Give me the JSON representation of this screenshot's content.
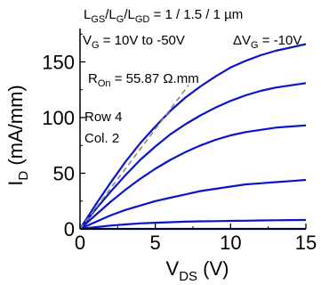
{
  "chart_data": {
    "type": "line",
    "title": "",
    "xlabel": "V",
    "xlabel_sub": "DS",
    "xlabel_unit": "(V)",
    "ylabel": "I",
    "ylabel_sub": "D",
    "ylabel_unit": "(mA/mm)",
    "xlim": [
      0,
      15
    ],
    "ylim": [
      0,
      180
    ],
    "xticks": [
      0,
      5,
      10,
      15
    ],
    "yticks": [
      0,
      50,
      100,
      150
    ],
    "grid": false,
    "colors": {
      "series": "#0a14c8",
      "ron_line": "#888888",
      "axis": "#000000"
    },
    "annotations": {
      "ratio": {
        "l_gs": "L",
        "l_gs_sub": "GS",
        "l_g": "L",
        "l_g_sub": "G",
        "l_gd": "L",
        "l_gd_sub": "GD",
        "values": " = 1 / 1.5 / 1 µm"
      },
      "vg": {
        "name": "V",
        "sub": "G",
        "range": " = 10V to -50V",
        "step_name": "ΔV",
        "step_sub": "G",
        "step_value": " = -10V"
      },
      "ron": {
        "name": "R",
        "sub": "On",
        "value": " = 55.87 Ω.mm"
      },
      "row": "Row 4",
      "col": "Col.  2"
    },
    "ron_line": {
      "x": [
        0,
        7.2
      ],
      "y": [
        0,
        129
      ]
    },
    "series": [
      {
        "x": [
          0,
          1,
          2,
          3,
          4,
          5,
          6,
          7,
          8,
          9,
          10,
          11,
          12,
          13,
          14,
          15
        ],
        "values": [
          0,
          21,
          41,
          60,
          77,
          92,
          106,
          118,
          128,
          137,
          145,
          151,
          156,
          160,
          163,
          166
        ]
      },
      {
        "x": [
          0,
          1,
          2,
          3,
          4,
          5,
          6,
          7,
          8,
          9,
          10,
          11,
          12,
          13,
          14,
          15
        ],
        "values": [
          0,
          17,
          33,
          48,
          62,
          74,
          85,
          94,
          102,
          109,
          115,
          120,
          124,
          127,
          129,
          131
        ]
      },
      {
        "x": [
          0,
          1,
          2,
          3,
          4,
          5,
          6,
          7,
          8,
          9,
          10,
          11,
          12,
          13,
          14,
          15
        ],
        "values": [
          0,
          12,
          24,
          35,
          45,
          54,
          62,
          69,
          75,
          80,
          84,
          87,
          89,
          91,
          92,
          93
        ]
      },
      {
        "x": [
          0,
          1,
          2,
          3,
          4,
          5,
          6,
          7,
          8,
          9,
          10,
          11,
          12,
          13,
          14,
          15
        ],
        "values": [
          0,
          6,
          12,
          17,
          21,
          25,
          28,
          31,
          34,
          36,
          38,
          40,
          41,
          42,
          43,
          44
        ]
      },
      {
        "x": [
          0,
          1,
          2,
          3,
          4,
          5,
          6,
          7,
          8,
          9,
          10,
          11,
          12,
          13,
          14,
          15
        ],
        "values": [
          0,
          1.5,
          3,
          4,
          5,
          5.5,
          6,
          6.5,
          6.8,
          7,
          7.2,
          7.4,
          7.6,
          7.8,
          7.9,
          8
        ]
      },
      {
        "x": [
          0,
          1,
          2,
          3,
          4,
          5,
          6,
          7,
          8,
          9,
          10,
          11,
          12,
          13,
          14,
          15
        ],
        "values": [
          0,
          0,
          0,
          0,
          0,
          0,
          0,
          0,
          0,
          0,
          0,
          0,
          0,
          0,
          0,
          0
        ]
      }
    ]
  }
}
